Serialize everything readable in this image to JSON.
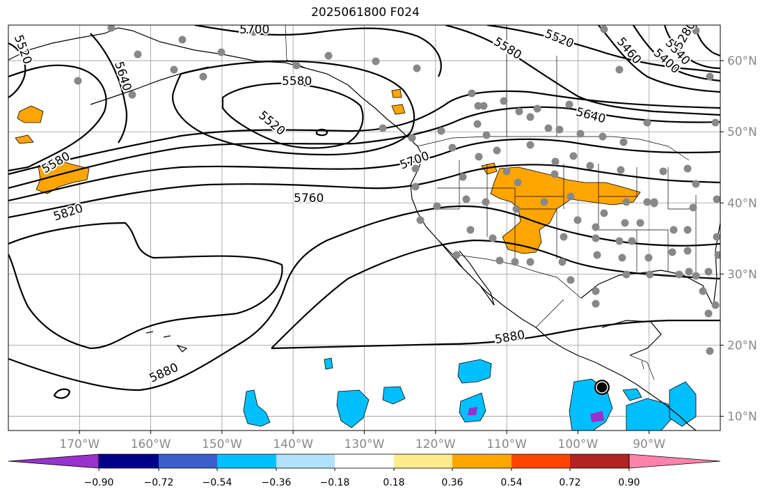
{
  "title": "2025061800 F024",
  "map": {
    "lon_range": [
      -180,
      -80
    ],
    "lat_range": [
      8,
      65
    ],
    "lon_ticks": [
      {
        "value": -170,
        "label": "170°W"
      },
      {
        "value": -160,
        "label": "160°W"
      },
      {
        "value": -150,
        "label": "150°W"
      },
      {
        "value": -140,
        "label": "140°W"
      },
      {
        "value": -130,
        "label": "130°W"
      },
      {
        "value": -120,
        "label": "120°W"
      },
      {
        "value": -110,
        "label": "110°W"
      },
      {
        "value": -100,
        "label": "100°W"
      },
      {
        "value": -90,
        "label": "90°W"
      }
    ],
    "lat_ticks": [
      {
        "value": 60,
        "label": "60°N"
      },
      {
        "value": 50,
        "label": "50°N"
      },
      {
        "value": 40,
        "label": "40°N"
      },
      {
        "value": 30,
        "label": "30°N"
      },
      {
        "value": 20,
        "label": "20°N"
      },
      {
        "value": 10,
        "label": "10°N"
      }
    ],
    "contour_labels": [
      "5520",
      "5700",
      "5640",
      "5580",
      "5520",
      "5580",
      "5460",
      "5400",
      "5340",
      "5280",
      "5580",
      "5640",
      "5520",
      "5580",
      "5700",
      "5820",
      "5760",
      "5880",
      "5880"
    ],
    "grid": true
  },
  "colorbar": {
    "colors": [
      "#9932CC",
      "#00008B",
      "#3A5FCD",
      "#00BFFF",
      "#B0E2FF",
      "#FFFFFF",
      "#FFEC8B",
      "#FFA500",
      "#FF4500",
      "#B22222",
      "#FF82AB"
    ],
    "tick_labels": [
      "−0.90",
      "−0.72",
      "−0.54",
      "−0.36",
      "−0.18",
      "0.18",
      "0.36",
      "0.54",
      "0.72",
      "0.90"
    ]
  }
}
